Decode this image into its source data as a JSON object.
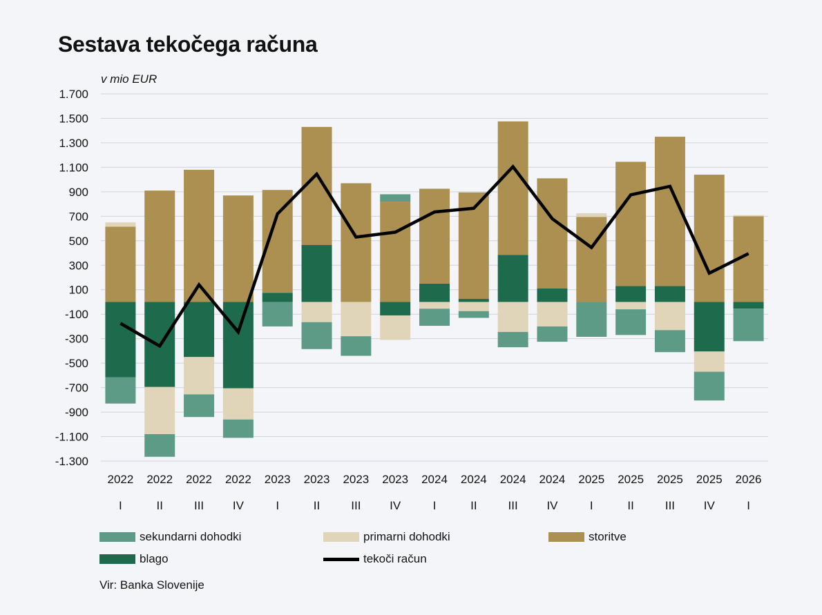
{
  "title": "Sestava tekočega računa",
  "source": "Vir: Banka Slovenije",
  "legend": {
    "secondary": "sekundarni dohodki",
    "primary": "primarni dohodki",
    "services": "storitve",
    "goods": "blago",
    "current_account": "tekoči račun"
  },
  "colors": {
    "goods": "#1e6a4c",
    "services": "#ab9051",
    "primary": "#e0d5b9",
    "secondary": "#5e9b86",
    "current_account": "#000000",
    "grid": "#cfd3da"
  },
  "chart_data": {
    "type": "bar",
    "stacked": true,
    "ylabel": "v mio EUR",
    "ylim": [
      -1300,
      1700
    ],
    "yticks": [
      1700,
      1500,
      1300,
      1100,
      900,
      700,
      500,
      300,
      100,
      -100,
      -300,
      -500,
      -700,
      -900,
      -1100,
      -1300
    ],
    "ytick_labels": [
      "1.700",
      "1.500",
      "1.300",
      "1.100",
      "900",
      "700",
      "500",
      "300",
      "100",
      "-100",
      "-300",
      "-500",
      "-700",
      "-900",
      "-1.100",
      "-1.300"
    ],
    "grid": true,
    "legend_position": "bottom",
    "categories": [
      {
        "year": "2022",
        "quarter": "I"
      },
      {
        "year": "2022",
        "quarter": "II"
      },
      {
        "year": "2022",
        "quarter": "III"
      },
      {
        "year": "2022",
        "quarter": "IV"
      },
      {
        "year": "2023",
        "quarter": "I"
      },
      {
        "year": "2023",
        "quarter": "II"
      },
      {
        "year": "2023",
        "quarter": "III"
      },
      {
        "year": "2023",
        "quarter": "IV"
      },
      {
        "year": "2024",
        "quarter": "I"
      },
      {
        "year": "2024",
        "quarter": "II"
      },
      {
        "year": "2024",
        "quarter": "III"
      },
      {
        "year": "2024",
        "quarter": "IV"
      },
      {
        "year": "2025",
        "quarter": "I"
      },
      {
        "year": "2025",
        "quarter": "II"
      },
      {
        "year": "2025",
        "quarter": "III"
      },
      {
        "year": "2025",
        "quarter": "IV"
      },
      {
        "year": "2026",
        "quarter": "I"
      }
    ],
    "series": [
      {
        "name": "blago",
        "key": "goods",
        "values": [
          -615,
          -695,
          -450,
          -705,
          75,
          465,
          0,
          -110,
          150,
          25,
          385,
          110,
          0,
          130,
          130,
          -405,
          -55
        ]
      },
      {
        "name": "storitve",
        "key": "services",
        "values": [
          615,
          910,
          1080,
          870,
          840,
          965,
          970,
          820,
          775,
          870,
          1090,
          900,
          695,
          1015,
          1220,
          1040,
          700
        ]
      },
      {
        "name": "primarni dohodki",
        "key": "primary",
        "values": [
          35,
          -385,
          -305,
          -255,
          0,
          -165,
          -280,
          -200,
          -55,
          -75,
          -245,
          -200,
          30,
          -60,
          -230,
          -165,
          10
        ]
      },
      {
        "name": "sekundarni dohodki",
        "key": "secondary",
        "values": [
          -215,
          -185,
          -185,
          -150,
          -200,
          -220,
          -160,
          60,
          -140,
          -55,
          -125,
          -125,
          -285,
          -210,
          -180,
          -235,
          -265
        ]
      },
      {
        "name": "tekoči račun",
        "key": "current_account",
        "type": "line",
        "values": [
          -175,
          -360,
          140,
          -245,
          720,
          1045,
          530,
          570,
          735,
          765,
          1105,
          680,
          445,
          875,
          945,
          235,
          395
        ]
      }
    ]
  }
}
